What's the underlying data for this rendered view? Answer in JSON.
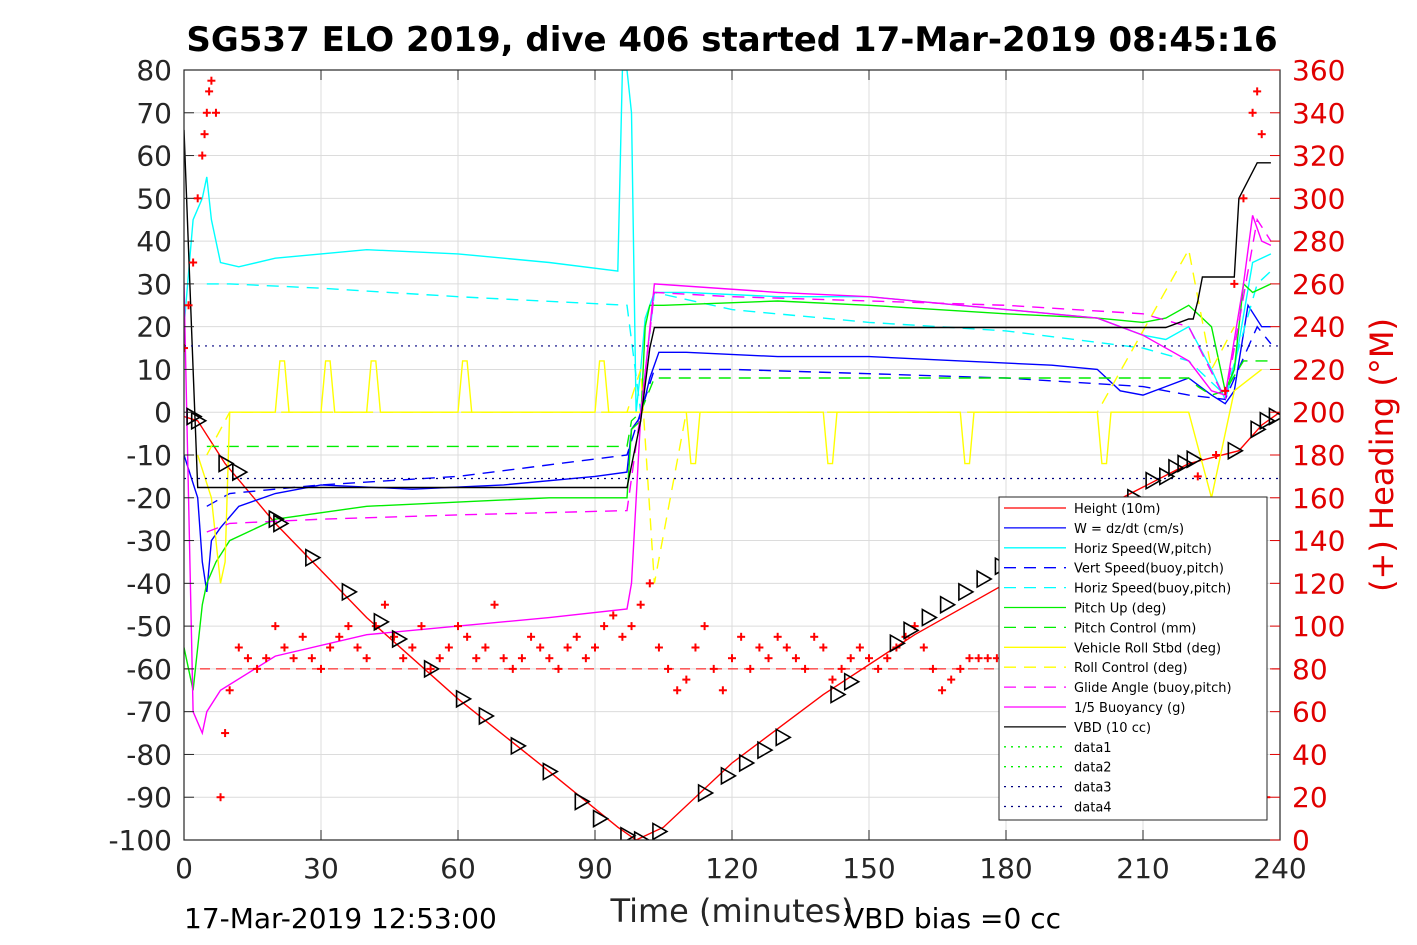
{
  "chart_data": {
    "type": "line",
    "title": "SG537 ELO 2019, dive 406 started 17-Mar-2019 08:45:16",
    "xlabel": "Time (minutes)",
    "ylabel_right": "(+) Heading (°M)",
    "xlim": [
      0,
      240
    ],
    "ylim_left": [
      -100,
      80
    ],
    "ylim_right": [
      0,
      360
    ],
    "x_ticks": [
      0,
      30,
      60,
      90,
      120,
      150,
      180,
      210,
      240
    ],
    "y_ticks_left": [
      80,
      70,
      60,
      50,
      40,
      30,
      20,
      10,
      0,
      -10,
      -20,
      -30,
      -40,
      -50,
      -60,
      -70,
      -80,
      -90,
      -100
    ],
    "y_ticks_right": [
      360,
      340,
      320,
      300,
      280,
      260,
      240,
      220,
      200,
      180,
      160,
      140,
      120,
      100,
      80,
      60,
      40,
      20,
      0
    ],
    "grid": true,
    "legend_position": "lower-right",
    "footer_left": "17-Mar-2019 12:53:00",
    "footer_right": "VBD bias =0 cc",
    "colors": {
      "height": "#ff0000",
      "w": "#0000ff",
      "horiz": "#00ffff",
      "pitch": "#00ee00",
      "roll": "#ffff00",
      "glide": "#ff00ff",
      "vbd": "#000000",
      "heading": "#ff0000",
      "data4": "#000080"
    },
    "series": [
      {
        "name": "Height (10m)",
        "style": "solid",
        "color": "#ff0000",
        "x": [
          0,
          3,
          9,
          20,
          40,
          60,
          80,
          95,
          99,
          105,
          120,
          140,
          160,
          180,
          200,
          220,
          231,
          236,
          240
        ],
        "y": [
          -1,
          -2,
          -12,
          -26,
          -48,
          -67,
          -84,
          -97,
          -100,
          -97,
          -82,
          -66,
          -52,
          -40,
          -23,
          -12,
          -9,
          -3,
          0
        ]
      },
      {
        "name": "W = dz/dt (cm/s)",
        "style": "solid",
        "color": "#0000ff",
        "x": [
          0,
          3,
          4,
          5,
          6,
          8,
          12,
          20,
          30,
          50,
          70,
          90,
          97,
          98,
          100,
          102,
          104,
          110,
          130,
          150,
          170,
          190,
          200,
          205,
          210,
          215,
          220,
          225,
          228,
          230,
          233,
          236,
          238
        ],
        "y": [
          -10,
          -20,
          -35,
          -42,
          -30,
          -27,
          -22,
          -19,
          -17,
          -18,
          -17,
          -15,
          -14,
          -4,
          -1,
          8,
          14,
          14,
          13,
          13,
          12,
          11,
          10,
          5,
          4,
          6,
          8,
          4,
          2,
          5,
          25,
          20,
          20
        ]
      },
      {
        "name": "Horiz Speed(W,pitch)",
        "style": "solid",
        "color": "#00ffff",
        "x": [
          0,
          2,
          4,
          5,
          6,
          8,
          12,
          20,
          40,
          60,
          80,
          95,
          96,
          97,
          98,
          99,
          100,
          101,
          103,
          110,
          130,
          150,
          170,
          190,
          200,
          205,
          210,
          215,
          220,
          225,
          228,
          230,
          234,
          238
        ],
        "y": [
          20,
          45,
          50,
          55,
          45,
          35,
          34,
          36,
          38,
          37,
          35,
          33,
          80,
          80,
          70,
          0,
          10,
          22,
          28,
          28,
          27,
          27,
          25,
          23,
          22,
          20,
          18,
          17,
          20,
          10,
          3,
          10,
          35,
          37
        ]
      },
      {
        "name": "Vert Speed(buoy,pitch)",
        "style": "dash",
        "color": "#0000ff",
        "x": [
          5,
          10,
          30,
          60,
          97,
          100,
          103,
          120,
          150,
          180,
          210,
          220,
          228,
          235,
          238
        ],
        "y": [
          -22,
          -19,
          -17,
          -15,
          -10,
          0,
          10,
          10,
          9,
          8,
          6,
          4,
          3,
          20,
          16
        ]
      },
      {
        "name": "Horiz Speed(buoy,pitch)",
        "style": "dash",
        "color": "#00ffff",
        "x": [
          5,
          10,
          30,
          60,
          97,
          100,
          103,
          120,
          150,
          180,
          210,
          220,
          228,
          235,
          238
        ],
        "y": [
          30,
          30,
          29,
          27,
          25,
          0,
          28,
          24,
          21,
          19,
          15,
          12,
          4,
          30,
          33
        ]
      },
      {
        "name": "Pitch Up (deg)",
        "style": "solid",
        "color": "#00ee00",
        "x": [
          0,
          2,
          4,
          5,
          7,
          10,
          20,
          40,
          60,
          80,
          97,
          98,
          100,
          101,
          102,
          105,
          130,
          150,
          180,
          200,
          210,
          215,
          220,
          225,
          228,
          230,
          232,
          234,
          236,
          238
        ],
        "y": [
          -55,
          -65,
          -45,
          -40,
          -35,
          -30,
          -25,
          -22,
          -21,
          -20,
          -20,
          -4,
          -2,
          20,
          25,
          25,
          26,
          25,
          23,
          22,
          21,
          22,
          25,
          20,
          5,
          10,
          30,
          28,
          29,
          30
        ]
      },
      {
        "name": "Pitch Control (mm)",
        "style": "dash",
        "color": "#00ee00",
        "x": [
          5,
          10,
          97,
          98,
          100,
          103,
          220,
          222,
          225,
          228,
          232,
          238
        ],
        "y": [
          -8,
          -8,
          -8,
          -2,
          0,
          8,
          8,
          6,
          4,
          5,
          12,
          12
        ]
      },
      {
        "name": "Vehicle Roll Stbd (deg)",
        "style": "solid",
        "color": "#ffff00",
        "x": [
          3,
          6,
          8,
          9,
          10,
          11,
          20,
          21,
          22,
          23,
          30,
          31,
          32,
          33,
          40,
          41,
          42,
          43,
          60,
          61,
          62,
          63,
          90,
          91,
          92,
          93,
          97,
          110,
          111,
          112,
          113,
          140,
          141,
          142,
          143,
          170,
          171,
          172,
          173,
          200,
          201,
          202,
          203,
          220,
          225,
          230,
          236
        ],
        "y": [
          -10,
          -20,
          -40,
          -35,
          0,
          0,
          0,
          12,
          12,
          0,
          0,
          12,
          12,
          0,
          0,
          12,
          12,
          0,
          0,
          12,
          12,
          0,
          0,
          12,
          12,
          0,
          0,
          0,
          -12,
          -12,
          0,
          0,
          -12,
          -12,
          0,
          0,
          -12,
          -12,
          0,
          0,
          -12,
          -12,
          0,
          0,
          -20,
          5,
          10
        ]
      },
      {
        "name": "Roll Control (deg)",
        "style": "dash",
        "color": "#ffff00",
        "x": [
          5,
          10,
          50,
          97,
          100,
          103,
          110,
          150,
          200,
          220,
          225,
          230
        ],
        "y": [
          -10,
          0,
          0,
          0,
          10,
          -40,
          0,
          0,
          0,
          38,
          10,
          20
        ]
      },
      {
        "name": "Glide Angle (buoy,pitch)",
        "style": "dash",
        "color": "#ff00ff",
        "x": [
          5,
          10,
          30,
          60,
          97,
          100,
          103,
          120,
          150,
          180,
          210,
          220,
          228,
          235,
          238
        ],
        "y": [
          -28,
          -26,
          -25,
          -24,
          -23,
          0,
          28,
          27,
          26,
          25,
          23,
          20,
          3,
          45,
          40
        ]
      },
      {
        "name": "1/5 Buoyancy (g)",
        "style": "solid",
        "color": "#ff00ff",
        "x": [
          0,
          2,
          4,
          5,
          8,
          20,
          40,
          60,
          80,
          97,
          98,
          100,
          103,
          130,
          150,
          170,
          190,
          200,
          210,
          220,
          225,
          228,
          232,
          234,
          236,
          238
        ],
        "y": [
          30,
          -70,
          -75,
          -70,
          -65,
          -57,
          -52,
          -50,
          -48,
          -46,
          -40,
          -1,
          30,
          28,
          27,
          25,
          23,
          22,
          18,
          12,
          5,
          4,
          30,
          46,
          40,
          39
        ]
      },
      {
        "name": "VBD (10 cc)",
        "style": "solid",
        "color": "#000000",
        "x": [
          0,
          2,
          3,
          97,
          100,
          102,
          103,
          215,
          220,
          221,
          222,
          223,
          230,
          231,
          235,
          236,
          238
        ],
        "y": [
          66,
          10,
          -17.6,
          -17.6,
          -2,
          15,
          19.8,
          19.8,
          21.8,
          21.8,
          26,
          31.6,
          31.6,
          50,
          58.3,
          58.3,
          58.3
        ]
      },
      {
        "name": "data1",
        "style": "dot",
        "color": "#00ee00",
        "x": [],
        "y": []
      },
      {
        "name": "data2",
        "style": "dot",
        "color": "#00ee00",
        "x": [],
        "y": []
      },
      {
        "name": "data3",
        "style": "dot",
        "color": "#000080",
        "x": [],
        "y": []
      },
      {
        "name": "data4",
        "style": "dot",
        "color": "#000080",
        "x": [
          0,
          240,
          0,
          240
        ],
        "y": [
          15.5,
          15.5,
          -15.5,
          -15.5
        ]
      }
    ],
    "heading_points": {
      "axis": "right",
      "x": [
        0,
        1,
        2,
        3,
        4,
        4.5,
        5,
        5.5,
        6,
        7,
        8,
        9,
        10,
        12,
        14,
        16,
        18,
        20,
        22,
        24,
        26,
        28,
        30,
        32,
        34,
        36,
        38,
        40,
        42,
        44,
        46,
        48,
        50,
        52,
        54,
        56,
        58,
        60,
        62,
        64,
        66,
        68,
        70,
        72,
        74,
        76,
        78,
        80,
        82,
        84,
        86,
        88,
        90,
        92,
        94,
        96,
        98,
        100,
        102,
        104,
        106,
        108,
        110,
        112,
        114,
        116,
        118,
        120,
        122,
        124,
        126,
        128,
        130,
        132,
        134,
        136,
        138,
        140,
        142,
        144,
        146,
        148,
        150,
        152,
        154,
        156,
        158,
        160,
        162,
        164,
        166,
        168,
        170,
        172,
        174,
        176,
        178,
        180,
        222,
        224,
        226,
        228,
        230,
        232,
        234,
        235,
        236,
        237
      ],
      "y": [
        230,
        250,
        270,
        300,
        320,
        330,
        340,
        350,
        355,
        340,
        20,
        50,
        70,
        90,
        85,
        80,
        85,
        100,
        90,
        85,
        95,
        85,
        80,
        90,
        95,
        100,
        90,
        85,
        100,
        110,
        95,
        85,
        90,
        100,
        80,
        85,
        90,
        100,
        95,
        85,
        90,
        110,
        85,
        80,
        85,
        95,
        90,
        85,
        80,
        90,
        95,
        85,
        90,
        100,
        105,
        95,
        100,
        110,
        120,
        90,
        80,
        70,
        75,
        90,
        100,
        80,
        70,
        85,
        95,
        80,
        90,
        85,
        95,
        90,
        85,
        80,
        95,
        90,
        75,
        80,
        85,
        90,
        85,
        80,
        85,
        90,
        95,
        100,
        90,
        80,
        70,
        75,
        80,
        85,
        85,
        85,
        85,
        85,
        170,
        150,
        180,
        210,
        260,
        300,
        340,
        350,
        330,
        20
      ]
    },
    "depth_markers": {
      "axis": "left",
      "x": [
        2,
        3,
        9,
        12,
        20,
        21,
        28,
        36,
        43,
        47,
        54,
        61,
        66,
        73,
        80,
        87,
        91,
        97,
        100,
        104,
        114,
        119,
        123,
        127,
        131,
        143,
        146,
        156,
        159,
        163,
        167,
        171,
        175,
        179,
        208,
        212,
        215,
        217,
        219,
        221,
        230,
        235,
        237,
        239
      ],
      "y": [
        -1,
        -2,
        -12,
        -14,
        -25,
        -26,
        -34,
        -42,
        -49,
        -53,
        -60,
        -67,
        -71,
        -78,
        -84,
        -91,
        -95,
        -99,
        -100,
        -98,
        -89,
        -85,
        -82,
        -79,
        -76,
        -66,
        -63,
        -54,
        -51,
        -48,
        -45,
        -42,
        -39,
        -36,
        -20,
        -16,
        -15,
        -13,
        -12,
        -11,
        -9,
        -4,
        -2,
        -1
      ]
    },
    "reference_lines": {
      "heading_dash": 80
    }
  }
}
